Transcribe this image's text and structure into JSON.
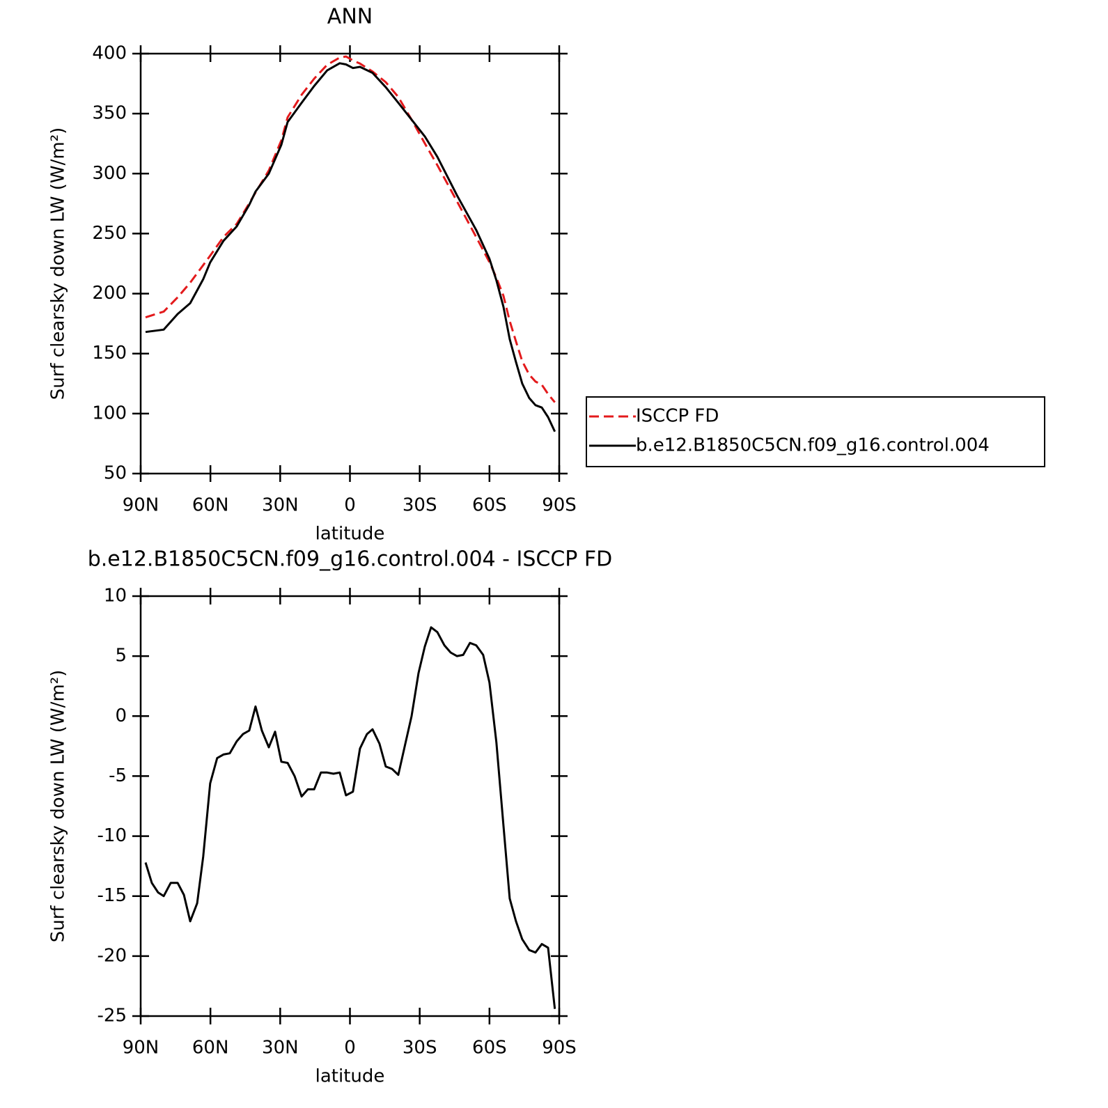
{
  "chart_data": [
    {
      "type": "line",
      "title": "ANN",
      "xlabel": "latitude",
      "ylabel": "Surf clearsky down LW (W/m²)",
      "x": [
        87.9,
        80.1,
        74.1,
        68.7,
        63.1,
        60.1,
        54.4,
        48.7,
        43.3,
        40.6,
        34.9,
        29.5,
        26.8,
        20.8,
        15.4,
        9.8,
        4.4,
        1.7,
        -1.3,
        -4.3,
        -9.7,
        -15.4,
        -20.8,
        -26.5,
        -32.2,
        -37.6,
        -46.0,
        -54.3,
        -60.0,
        -63.0,
        -66.0,
        -68.7,
        -71.4,
        -74.1,
        -77.1,
        -79.8,
        -82.5,
        -85.2,
        -88.1
      ],
      "series": [
        {
          "name": "ISCCP FD",
          "color": "#e31a1c",
          "line_style": "dashed",
          "values": [
            180.2,
            185,
            196.9,
            209.1,
            223.7,
            231.6,
            247.2,
            258.1,
            275.2,
            284.2,
            302.6,
            327.8,
            346.9,
            365.7,
            379.1,
            390.7,
            396.7,
            397.6,
            394.3,
            391.7,
            385.1,
            376.2,
            363.9,
            345,
            325.2,
            307,
            277,
            247.1,
            226.2,
            213.2,
            198.1,
            177.2,
            160.1,
            143.6,
            132.5,
            126.7,
            124,
            116.3,
            109.4
          ]
        },
        {
          "name": "b.e12.B1850C5CN.f09_g16.control.004",
          "color": "#000000",
          "line_style": "solid",
          "values": [
            168,
            170,
            183,
            192,
            212,
            226,
            244,
            256,
            274,
            285,
            300,
            324,
            343,
            359,
            373,
            386,
            392,
            391,
            388,
            389,
            384,
            372,
            359,
            345,
            331,
            314,
            282,
            253,
            229,
            211,
            189,
            162,
            143,
            125,
            113,
            107,
            105,
            97,
            85
          ]
        }
      ],
      "xlim": [
        90,
        -90
      ],
      "xticks": [
        {
          "value": 90,
          "label": "90N"
        },
        {
          "value": 60,
          "label": "60N"
        },
        {
          "value": 30,
          "label": "30N"
        },
        0,
        {
          "value": -30,
          "label": "30S"
        },
        {
          "value": -60,
          "label": "60S"
        },
        {
          "value": -90,
          "label": "90S"
        }
      ],
      "ylim": [
        50,
        400
      ],
      "yticks": [
        50,
        100,
        150,
        200,
        250,
        300,
        350,
        400
      ],
      "legend": "right"
    },
    {
      "type": "line",
      "title": "b.e12.B1850C5CN.f09_g16.control.004 - ISCCP FD",
      "xlabel": "latitude",
      "ylabel": "Surf clearsky down LW (W/m²)",
      "x": [
        87.9,
        85.2,
        82.5,
        80.1,
        77.1,
        74.1,
        71.4,
        68.7,
        65.7,
        63.1,
        60.1,
        57.1,
        54.4,
        51.7,
        48.7,
        46.0,
        43.3,
        40.6,
        37.9,
        34.9,
        32.2,
        29.5,
        26.8,
        23.8,
        20.8,
        18.1,
        15.4,
        12.5,
        9.8,
        7.1,
        4.4,
        1.7,
        -1.3,
        -4.3,
        -7.3,
        -9.7,
        -12.7,
        -15.4,
        -18.1,
        -20.8,
        -23.8,
        -26.5,
        -29.5,
        -32.2,
        -34.9,
        -37.6,
        -40.6,
        -43.3,
        -46.0,
        -48.7,
        -51.6,
        -54.3,
        -57.3,
        -60.0,
        -63.0,
        -66.0,
        -68.7,
        -71.4,
        -74.1,
        -77.1,
        -79.8,
        -82.5,
        -85.2,
        -88.1
      ],
      "values": [
        -12.2,
        -13.9,
        -14.7,
        -15.0,
        -13.9,
        -13.9,
        -14.9,
        -17.1,
        -15.6,
        -11.7,
        -5.6,
        -3.5,
        -3.2,
        -3.1,
        -2.1,
        -1.5,
        -1.2,
        0.8,
        -1.2,
        -2.6,
        -1.3,
        -3.8,
        -3.9,
        -5.0,
        -6.7,
        -6.1,
        -6.1,
        -4.7,
        -4.7,
        -4.8,
        -4.7,
        -6.6,
        -6.3,
        -2.7,
        -1.5,
        -1.1,
        -2.3,
        -4.2,
        -4.4,
        -4.9,
        -2.3,
        0.0,
        3.6,
        5.8,
        7.4,
        7.0,
        5.9,
        5.3,
        5.0,
        5.1,
        6.1,
        5.9,
        5.1,
        2.8,
        -2.2,
        -9.1,
        -15.2,
        -17.1,
        -18.6,
        -19.5,
        -19.7,
        -19.0,
        -19.3,
        -24.4
      ],
      "color": "#000000",
      "xlim": [
        90,
        -90
      ],
      "xticks": [
        {
          "value": 90,
          "label": "90N"
        },
        {
          "value": 60,
          "label": "60N"
        },
        {
          "value": 30,
          "label": "30N"
        },
        0,
        {
          "value": -30,
          "label": "30S"
        },
        {
          "value": -60,
          "label": "60S"
        },
        {
          "value": -90,
          "label": "90S"
        }
      ],
      "ylim": [
        -25,
        10
      ],
      "yticks": [
        -25,
        -20,
        -15,
        -10,
        -5,
        0,
        5,
        10
      ]
    }
  ]
}
